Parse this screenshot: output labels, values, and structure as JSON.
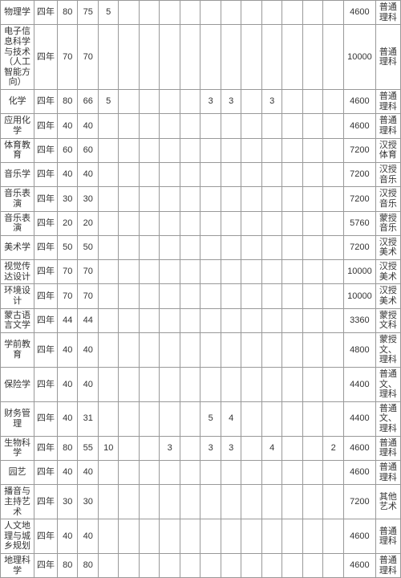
{
  "table": {
    "columns": 18,
    "rows": [
      {
        "cells": [
          "物理学",
          "四年",
          "80",
          "75",
          "5",
          "",
          "",
          "",
          "",
          "",
          "",
          "",
          "",
          "",
          "",
          "",
          "4600",
          "普通理科"
        ]
      },
      {
        "cells": [
          "电子信息科学与技术（人工智能方向）",
          "四年",
          "70",
          "70",
          "",
          "",
          "",
          "",
          "",
          "",
          "",
          "",
          "",
          "",
          "",
          "",
          "10000",
          "普通理科"
        ]
      },
      {
        "cells": [
          "化学",
          "四年",
          "80",
          "66",
          "5",
          "",
          "",
          "",
          "",
          "3",
          "3",
          "",
          "3",
          "",
          "",
          "",
          "4600",
          "普通理科"
        ]
      },
      {
        "cells": [
          "应用化学",
          "四年",
          "40",
          "40",
          "",
          "",
          "",
          "",
          "",
          "",
          "",
          "",
          "",
          "",
          "",
          "",
          "4600",
          "普通理科"
        ]
      },
      {
        "cells": [
          "体育教育",
          "四年",
          "60",
          "60",
          "",
          "",
          "",
          "",
          "",
          "",
          "",
          "",
          "",
          "",
          "",
          "",
          "7200",
          "汉授体育"
        ]
      },
      {
        "cells": [
          "音乐学",
          "四年",
          "40",
          "40",
          "",
          "",
          "",
          "",
          "",
          "",
          "",
          "",
          "",
          "",
          "",
          "",
          "7200",
          "汉授音乐"
        ]
      },
      {
        "cells": [
          "音乐表演",
          "四年",
          "30",
          "30",
          "",
          "",
          "",
          "",
          "",
          "",
          "",
          "",
          "",
          "",
          "",
          "",
          "7200",
          "汉授音乐"
        ]
      },
      {
        "cells": [
          "音乐表演",
          "四年",
          "20",
          "20",
          "",
          "",
          "",
          "",
          "",
          "",
          "",
          "",
          "",
          "",
          "",
          "",
          "5760",
          "蒙授音乐"
        ]
      },
      {
        "cells": [
          "美术学",
          "四年",
          "50",
          "50",
          "",
          "",
          "",
          "",
          "",
          "",
          "",
          "",
          "",
          "",
          "",
          "",
          "7200",
          "汉授美术"
        ]
      },
      {
        "cells": [
          "视觉传达设计",
          "四年",
          "70",
          "70",
          "",
          "",
          "",
          "",
          "",
          "",
          "",
          "",
          "",
          "",
          "",
          "",
          "10000",
          "汉授美术"
        ]
      },
      {
        "cells": [
          "环境设计",
          "四年",
          "70",
          "70",
          "",
          "",
          "",
          "",
          "",
          "",
          "",
          "",
          "",
          "",
          "",
          "",
          "10000",
          "汉授美术"
        ]
      },
      {
        "cells": [
          "蒙古语言文学",
          "四年",
          "44",
          "44",
          "",
          "",
          "",
          "",
          "",
          "",
          "",
          "",
          "",
          "",
          "",
          "",
          "3360",
          "蒙授文科"
        ]
      },
      {
        "cells": [
          "学前教育",
          "四年",
          "40",
          "40",
          "",
          "",
          "",
          "",
          "",
          "",
          "",
          "",
          "",
          "",
          "",
          "",
          "4800",
          "蒙授文、理科"
        ]
      },
      {
        "cells": [
          "保险学",
          "四年",
          "40",
          "40",
          "",
          "",
          "",
          "",
          "",
          "",
          "",
          "",
          "",
          "",
          "",
          "",
          "4400",
          "普通文、理科"
        ]
      },
      {
        "cells": [
          "财务管理",
          "四年",
          "40",
          "31",
          "",
          "",
          "",
          "",
          "",
          "5",
          "4",
          "",
          "",
          "",
          "",
          "",
          "4400",
          "普通文、理科"
        ]
      },
      {
        "cells": [
          "生物科学",
          "四年",
          "80",
          "55",
          "10",
          "",
          "",
          "3",
          "",
          "3",
          "3",
          "",
          "4",
          "",
          "",
          "2",
          "4600",
          "普通理科"
        ]
      },
      {
        "cells": [
          "园艺",
          "四年",
          "40",
          "40",
          "",
          "",
          "",
          "",
          "",
          "",
          "",
          "",
          "",
          "",
          "",
          "",
          "4600",
          "普通理科"
        ]
      },
      {
        "cells": [
          "播音与主持艺术",
          "四年",
          "30",
          "30",
          "",
          "",
          "",
          "",
          "",
          "",
          "",
          "",
          "",
          "",
          "",
          "",
          "7200",
          "其他艺术"
        ]
      },
      {
        "cells": [
          "人文地理与城乡规划",
          "四年",
          "40",
          "40",
          "",
          "",
          "",
          "",
          "",
          "",
          "",
          "",
          "",
          "",
          "",
          "",
          "4600",
          "普通理科"
        ]
      },
      {
        "cells": [
          "地理科学",
          "四年",
          "80",
          "80",
          "",
          "",
          "",
          "",
          "",
          "",
          "",
          "",
          "",
          "",
          "",
          "",
          "4600",
          "普通理科"
        ]
      }
    ],
    "border_color": "#999999",
    "text_color": "#333333",
    "background_color": "#ffffff",
    "font_size": 11
  }
}
